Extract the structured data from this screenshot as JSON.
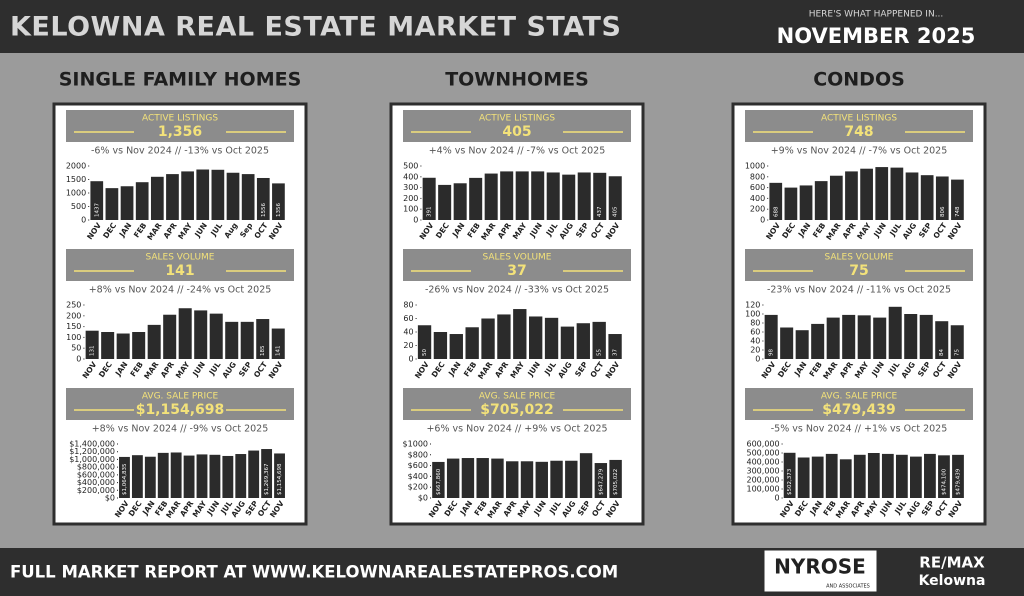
{
  "header": {
    "title": "KELOWNA REAL ESTATE MARKET STATS",
    "kicker": "HERE'S WHAT HAPPENED IN...",
    "period": "NOVEMBER 2025"
  },
  "sections": [
    {
      "title": "SINGLE FAMILY HOMES"
    },
    {
      "title": "TOWNHOMES"
    },
    {
      "title": "CONDOS"
    }
  ],
  "chart_data": [
    {
      "type": "bar",
      "title": "ACTIVE LISTINGS",
      "subtitle": "1,356",
      "annotation": "-6% vs Nov 2024 // -13% vs Oct 2025",
      "categories": [
        "NOV",
        "DEC",
        "JAN",
        "FEB",
        "MAR",
        "APR",
        "MAY",
        "JUN",
        "JUL",
        "Aug",
        "Sep",
        "OCT",
        "NOV"
      ],
      "values": [
        1437,
        1180,
        1250,
        1400,
        1600,
        1700,
        1800,
        1870,
        1860,
        1750,
        1700,
        1556,
        1356
      ],
      "value_labels": [
        "1437",
        null,
        null,
        null,
        null,
        null,
        null,
        null,
        null,
        null,
        null,
        "1556",
        "1356"
      ],
      "color": "#2b2b2b",
      "ylim": [
        0,
        2000
      ],
      "yticks": [
        0,
        500,
        1000,
        1500,
        2000
      ]
    },
    {
      "type": "bar",
      "title": "SALES VOLUME",
      "subtitle": "141",
      "annotation": "+8% vs  Nov 2024 // -24% vs Oct 2025",
      "categories": [
        "NOV",
        "DEC",
        "JAN",
        "FEB",
        "MAR",
        "APR",
        "MAY",
        "JUN",
        "JUL",
        "AUG",
        "SEP",
        "OCT",
        "NOV"
      ],
      "values": [
        131,
        125,
        118,
        125,
        158,
        205,
        235,
        225,
        210,
        172,
        172,
        185,
        141
      ],
      "value_labels": [
        "131",
        null,
        null,
        null,
        null,
        null,
        null,
        null,
        null,
        null,
        null,
        "185",
        "141"
      ],
      "color": "#2b2b2b",
      "ylim": [
        0,
        250
      ],
      "yticks": [
        0,
        50,
        100,
        150,
        200,
        250
      ]
    },
    {
      "type": "bar",
      "title": "AVG. SALE PRICE",
      "subtitle": "$1,154,698",
      "annotation": "+8% vs Nov 2024 // -9% vs Oct 2025",
      "categories": [
        "NOV",
        "DEC",
        "JAN",
        "FEB",
        "MAR",
        "APR",
        "MAY",
        "JUN",
        "JUL",
        "AUG",
        "SEP",
        "OCT",
        "NOV"
      ],
      "values": [
        1064835,
        1110000,
        1070000,
        1170000,
        1180000,
        1100000,
        1130000,
        1120000,
        1090000,
        1140000,
        1230000,
        1269367,
        1154698
      ],
      "value_labels": [
        "$1,064,835",
        null,
        null,
        null,
        null,
        null,
        null,
        null,
        null,
        null,
        null,
        "$1,269,367",
        "$1,154,698"
      ],
      "color": "#2b2b2b",
      "ylim": [
        0,
        1400000
      ],
      "yticks": [
        {
          "value": 0,
          "label": "$0"
        },
        {
          "value": 200000,
          "label": "$200,000"
        },
        {
          "value": 400000,
          "label": "$400,000"
        },
        {
          "value": 600000,
          "label": "$600,000"
        },
        {
          "value": 800000,
          "label": "$800,000"
        },
        {
          "value": 1000000,
          "label": "$1,000,000"
        },
        {
          "value": 1200000,
          "label": "$1,200,000"
        },
        {
          "value": 1400000,
          "label": "$1,400,000"
        }
      ]
    },
    {
      "type": "bar",
      "title": "ACTIVE LISTINGS",
      "subtitle": "405",
      "annotation": "+4% vs Nov 2024 // -7% vs Oct 2025",
      "categories": [
        "NOV",
        "DEC",
        "JAN",
        "FEB",
        "MAR",
        "APR",
        "MAY",
        "JUN",
        "JUL",
        "AUG",
        "SEP",
        "OCT",
        "NOV"
      ],
      "values": [
        391,
        325,
        340,
        390,
        430,
        450,
        450,
        450,
        440,
        420,
        440,
        437,
        405
      ],
      "value_labels": [
        "391",
        null,
        null,
        null,
        null,
        null,
        null,
        null,
        null,
        null,
        null,
        "437",
        "405"
      ],
      "color": "#2b2b2b",
      "ylim": [
        0,
        500
      ],
      "yticks": [
        0,
        100,
        200,
        300,
        400,
        500
      ]
    },
    {
      "type": "bar",
      "title": "SALES VOLUME",
      "subtitle": "37",
      "annotation": "-26% vs  Nov 2024 // -33% vs Oct 2025",
      "categories": [
        "NOV",
        "DEC",
        "JAN",
        "FEB",
        "MAR",
        "APR",
        "MAY",
        "JUN",
        "JUL",
        "AUG",
        "SEP",
        "OCT",
        "NOV"
      ],
      "values": [
        50,
        40,
        37,
        47,
        60,
        66,
        74,
        63,
        61,
        48,
        53,
        55,
        37
      ],
      "value_labels": [
        "50",
        null,
        null,
        null,
        null,
        null,
        null,
        null,
        null,
        null,
        null,
        "55",
        "37"
      ],
      "color": "#2b2b2b",
      "ylim": [
        0,
        80
      ],
      "yticks": [
        0,
        20,
        40,
        60,
        80
      ]
    },
    {
      "type": "bar",
      "title": "AVG. SALE PRICE",
      "subtitle": "$705,022",
      "annotation": "+6% vs  Nov 2024 // +9% vs Oct 2025",
      "categories": [
        "NOV",
        "DEC",
        "JAN",
        "FEB",
        "MAR",
        "APR",
        "MAY",
        "JUN",
        "JUL",
        "AUG",
        "SEP",
        "OCT",
        "NOV"
      ],
      "values": [
        667860,
        730000,
        740000,
        740000,
        730000,
        680000,
        680000,
        670000,
        690000,
        690000,
        830000,
        647279,
        705022
      ],
      "value_labels": [
        "$667,860",
        null,
        null,
        null,
        null,
        null,
        null,
        null,
        null,
        null,
        null,
        "$647,279",
        "$705,022"
      ],
      "color": "#2b2b2b",
      "ylim": [
        0,
        1000000
      ],
      "yticks": [
        {
          "value": 0,
          "label": "$0"
        },
        {
          "value": 200000,
          "label": "$200"
        },
        {
          "value": 400000,
          "label": "$400"
        },
        {
          "value": 600000,
          "label": "$600"
        },
        {
          "value": 800000,
          "label": "$800"
        },
        {
          "value": 1000000,
          "label": "$1000"
        }
      ]
    },
    {
      "type": "bar",
      "title": "ACTIVE LISTINGS",
      "subtitle": "748",
      "annotation": "+9% vs Nov 2024 // -7% vs Oct 2025",
      "categories": [
        "NOV",
        "DEC",
        "JAN",
        "FEB",
        "MAR",
        "APR",
        "MAY",
        "JUN",
        "JUL",
        "AUG",
        "SEP",
        "OCT",
        "NOV"
      ],
      "values": [
        688,
        600,
        640,
        720,
        820,
        900,
        950,
        980,
        970,
        880,
        830,
        806,
        748
      ],
      "value_labels": [
        "688",
        null,
        null,
        null,
        null,
        null,
        null,
        null,
        null,
        null,
        null,
        "806",
        "748"
      ],
      "color": "#2b2b2b",
      "ylim": [
        0,
        1000
      ],
      "yticks": [
        0,
        200,
        400,
        600,
        800,
        1000
      ]
    },
    {
      "type": "bar",
      "title": "SALES VOLUME",
      "subtitle": "75",
      "annotation": "-23% vs  Nov 2024 // -11% vs Oct 2025",
      "categories": [
        "NOV",
        "DEC",
        "JAN",
        "FEB",
        "MAR",
        "APR",
        "MAY",
        "JUN",
        "JUL",
        "AUG",
        "SEP",
        "OCT",
        "NOV"
      ],
      "values": [
        98,
        70,
        64,
        78,
        92,
        98,
        97,
        92,
        116,
        100,
        98,
        84,
        75
      ],
      "value_labels": [
        "98",
        null,
        null,
        null,
        null,
        null,
        null,
        null,
        null,
        null,
        null,
        "84",
        "75"
      ],
      "color": "#2b2b2b",
      "ylim": [
        0,
        120
      ],
      "yticks": [
        0,
        20,
        40,
        60,
        80,
        100,
        120
      ]
    },
    {
      "type": "bar",
      "title": "AVG. SALE PRICE",
      "subtitle": "$479,439",
      "annotation": "-5% vs  Nov 2024 // +1% vs Oct 2025",
      "categories": [
        "NOV",
        "DEC",
        "JAN",
        "FEB",
        "MAR",
        "APR",
        "MAY",
        "JUN",
        "JUL",
        "AUG",
        "SEP",
        "OCT",
        "NOV"
      ],
      "values": [
        502373,
        450000,
        460000,
        490000,
        430000,
        480000,
        500000,
        490000,
        480000,
        460000,
        490000,
        474100,
        479439
      ],
      "value_labels": [
        "$502,373",
        null,
        null,
        null,
        null,
        null,
        null,
        null,
        null,
        null,
        null,
        "$474,100",
        "$479,439"
      ],
      "color": "#2b2b2b",
      "ylim": [
        0,
        600000
      ],
      "yticks": [
        0,
        {
          "value": 100000,
          "label": "100,000"
        },
        {
          "value": 200000,
          "label": "200,000"
        },
        {
          "value": 300000,
          "label": "300,000"
        },
        {
          "value": 400000,
          "label": "400,000"
        },
        {
          "value": 500000,
          "label": "500,000"
        },
        {
          "value": 600000,
          "label": "600,000"
        }
      ]
    }
  ],
  "footer": {
    "text": "FULL MARKET REPORT AT WWW.KELOWNAREALESTATEPROS.COM",
    "logo1": "NYROSE",
    "logo1_sub": "AND ASSOCIATES",
    "logo2": "RE/MAX",
    "logo2_sub": "Kelowna"
  }
}
